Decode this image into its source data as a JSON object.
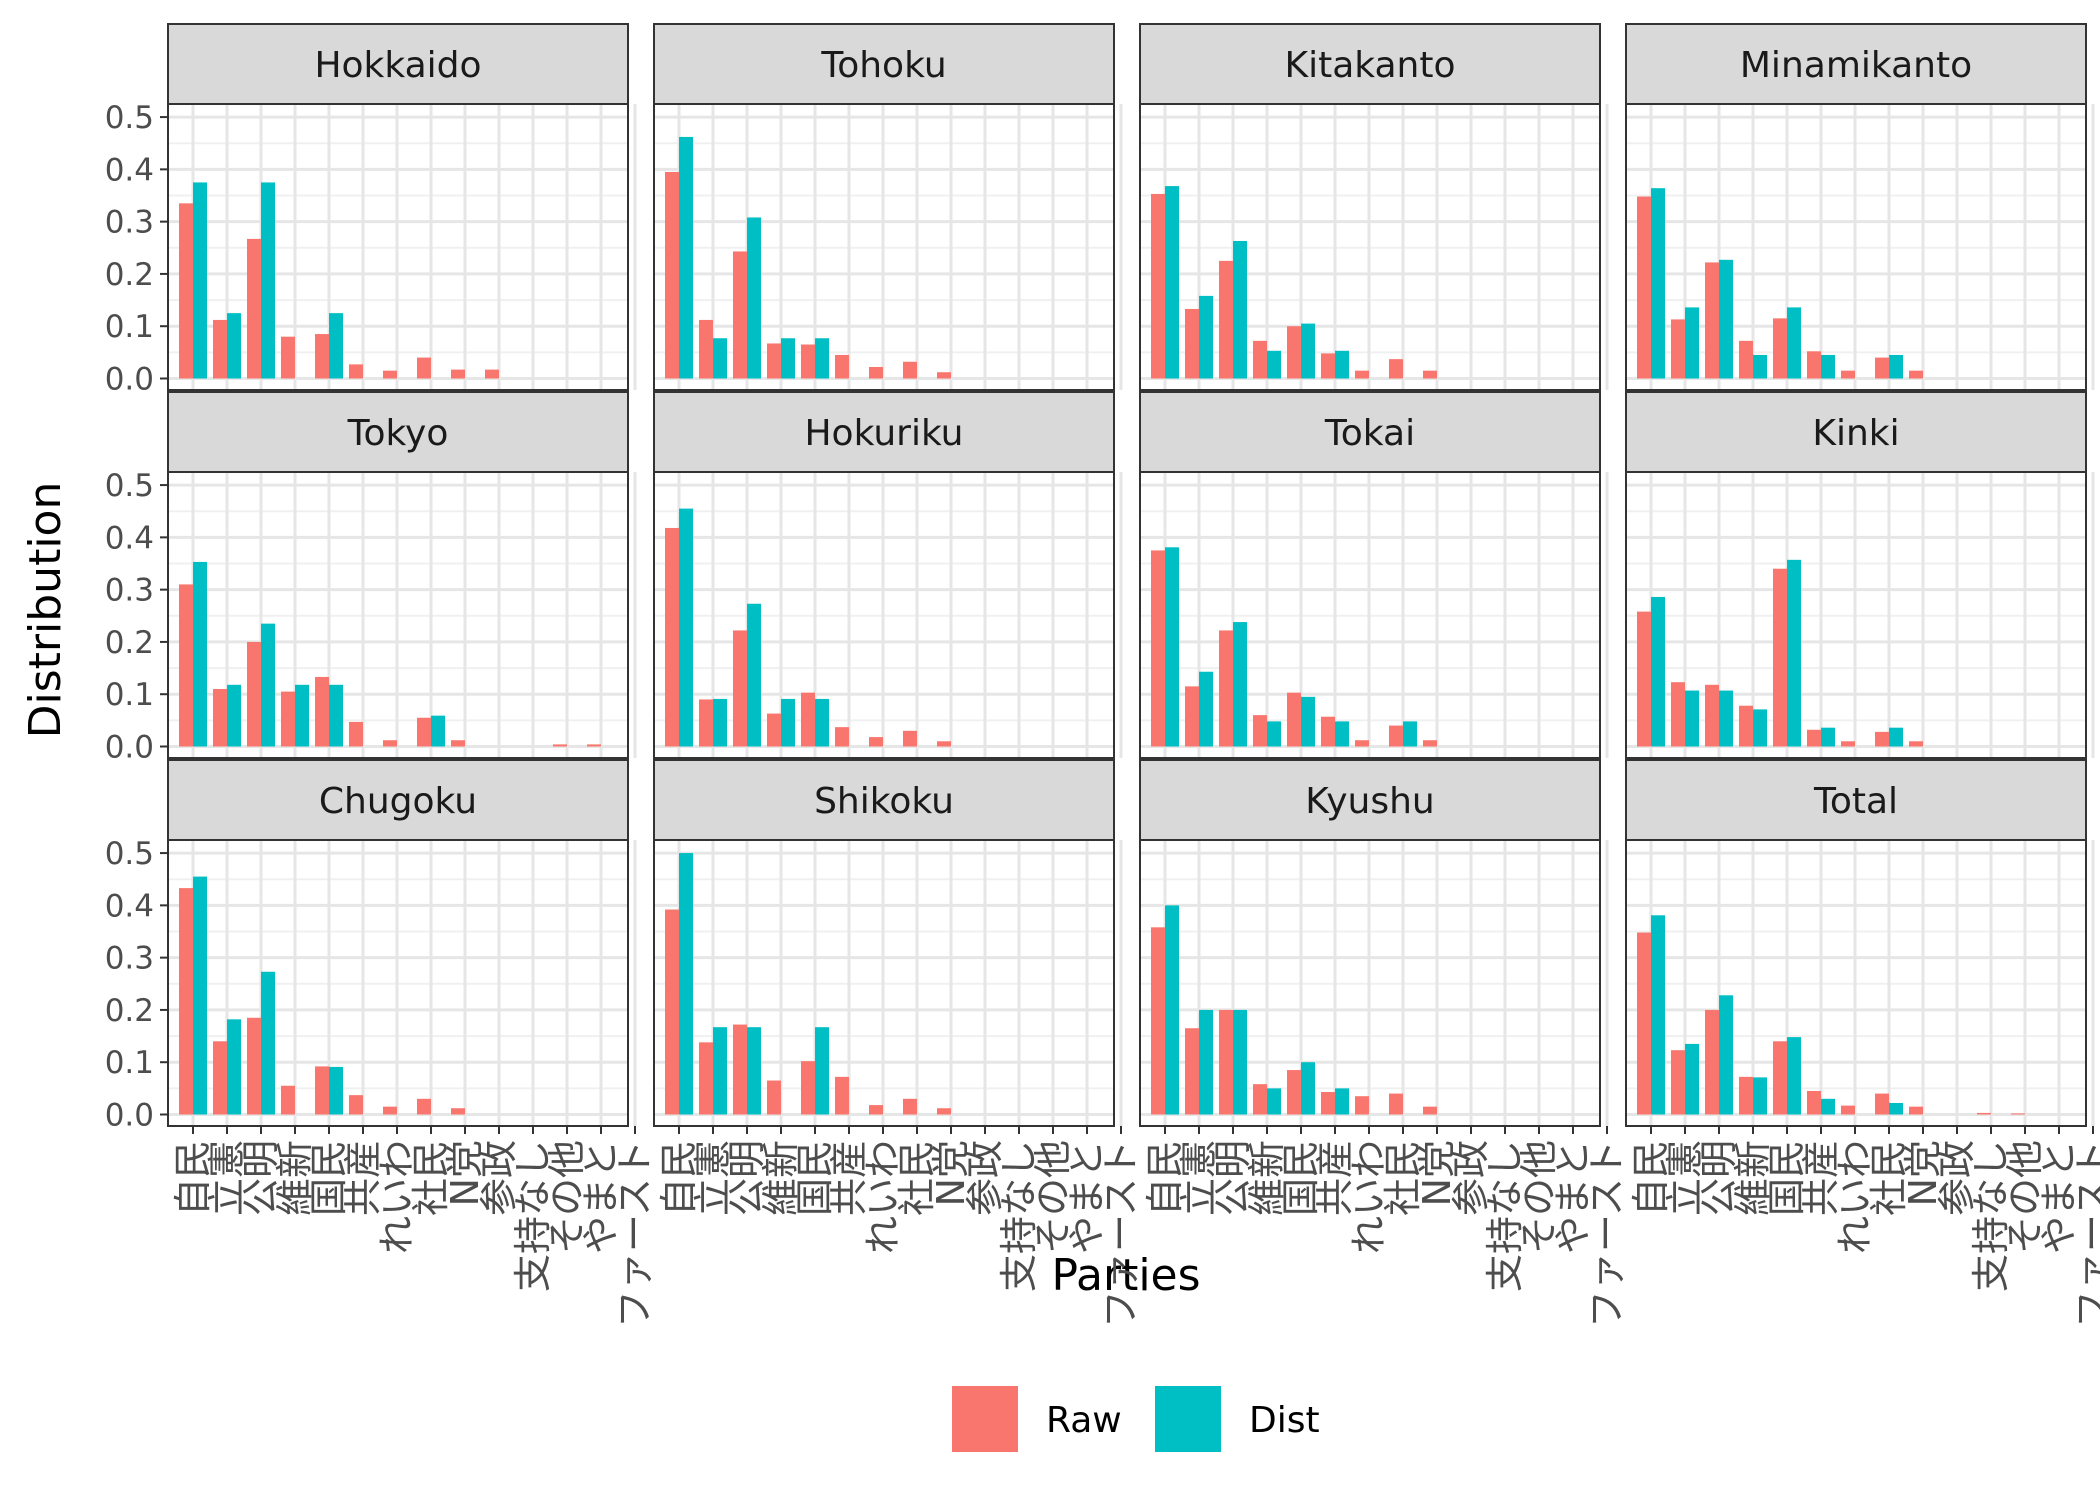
{
  "chart_data": {
    "type": "bar",
    "xlabel": "Parties",
    "ylabel": "Distribution",
    "ylim": [
      0,
      0.5
    ],
    "yticks": [
      "0.0",
      "0.1",
      "0.2",
      "0.3",
      "0.4",
      "0.5"
    ],
    "categories": [
      "自民",
      "立憲",
      "公明",
      "維新",
      "国民",
      "共産",
      "れいわ",
      "社民",
      "N党",
      "参政",
      "支持なし",
      "その他",
      "やまと",
      "ファースト"
    ],
    "legend": {
      "position": "bottom",
      "entries": [
        "Raw",
        "Dist"
      ]
    },
    "colors": {
      "Raw": "#F8766D",
      "Dist": "#00BFC4"
    },
    "grid": true,
    "facets": [
      {
        "name": "Hokkaido",
        "series": [
          {
            "name": "Raw",
            "values": [
              0.335,
              0.112,
              0.267,
              0.08,
              0.085,
              0.027,
              0.015,
              0.04,
              0.017,
              0.017,
              0,
              0,
              0,
              0
            ]
          },
          {
            "name": "Dist",
            "values": [
              0.375,
              0.125,
              0.375,
              0,
              0.125,
              0,
              0,
              0,
              0,
              0,
              0,
              0,
              0,
              0
            ]
          }
        ]
      },
      {
        "name": "Tohoku",
        "series": [
          {
            "name": "Raw",
            "values": [
              0.395,
              0.112,
              0.243,
              0.067,
              0.065,
              0.045,
              0.022,
              0.032,
              0.012,
              0,
              0,
              0,
              0,
              0
            ]
          },
          {
            "name": "Dist",
            "values": [
              0.462,
              0.077,
              0.308,
              0.077,
              0.077,
              0,
              0,
              0,
              0,
              0,
              0,
              0,
              0,
              0
            ]
          }
        ]
      },
      {
        "name": "Kitakanto",
        "series": [
          {
            "name": "Raw",
            "values": [
              0.353,
              0.133,
              0.225,
              0.072,
              0.1,
              0.048,
              0.015,
              0.037,
              0.015,
              0,
              0,
              0,
              0,
              0
            ]
          },
          {
            "name": "Dist",
            "values": [
              0.368,
              0.158,
              0.263,
              0.053,
              0.105,
              0.053,
              0,
              0,
              0,
              0,
              0,
              0,
              0,
              0
            ]
          }
        ]
      },
      {
        "name": "Minamikanto",
        "series": [
          {
            "name": "Raw",
            "values": [
              0.348,
              0.113,
              0.222,
              0.072,
              0.115,
              0.052,
              0.015,
              0.04,
              0.015,
              0,
              0,
              0,
              0,
              0
            ]
          },
          {
            "name": "Dist",
            "values": [
              0.364,
              0.136,
              0.227,
              0.045,
              0.136,
              0.045,
              0,
              0.045,
              0,
              0,
              0,
              0,
              0,
              0
            ]
          }
        ]
      },
      {
        "name": "Tokyo",
        "series": [
          {
            "name": "Raw",
            "values": [
              0.31,
              0.11,
              0.2,
              0.105,
              0.133,
              0.047,
              0.012,
              0.055,
              0.012,
              0,
              0,
              0.004,
              0.004,
              0
            ]
          },
          {
            "name": "Dist",
            "values": [
              0.353,
              0.118,
              0.235,
              0.118,
              0.118,
              0,
              0,
              0.059,
              0,
              0,
              0,
              0,
              0,
              0
            ]
          }
        ]
      },
      {
        "name": "Hokuriku",
        "series": [
          {
            "name": "Raw",
            "values": [
              0.418,
              0.09,
              0.222,
              0.063,
              0.103,
              0.037,
              0.018,
              0.03,
              0.01,
              0,
              0,
              0,
              0,
              0
            ]
          },
          {
            "name": "Dist",
            "values": [
              0.455,
              0.091,
              0.273,
              0.091,
              0.091,
              0,
              0,
              0,
              0,
              0,
              0,
              0,
              0,
              0
            ]
          }
        ]
      },
      {
        "name": "Tokai",
        "series": [
          {
            "name": "Raw",
            "values": [
              0.375,
              0.115,
              0.222,
              0.06,
              0.103,
              0.057,
              0.012,
              0.04,
              0.012,
              0,
              0,
              0,
              0,
              0
            ]
          },
          {
            "name": "Dist",
            "values": [
              0.381,
              0.143,
              0.238,
              0.048,
              0.095,
              0.048,
              0,
              0.048,
              0,
              0,
              0,
              0,
              0,
              0
            ]
          }
        ]
      },
      {
        "name": "Kinki",
        "series": [
          {
            "name": "Raw",
            "values": [
              0.258,
              0.123,
              0.118,
              0.078,
              0.34,
              0.032,
              0.01,
              0.028,
              0.01,
              0,
              0,
              0,
              0,
              0
            ]
          },
          {
            "name": "Dist",
            "values": [
              0.286,
              0.107,
              0.107,
              0.071,
              0.357,
              0.036,
              0,
              0.036,
              0,
              0,
              0,
              0,
              0,
              0
            ]
          }
        ]
      },
      {
        "name": "Chugoku",
        "series": [
          {
            "name": "Raw",
            "values": [
              0.433,
              0.14,
              0.185,
              0.055,
              0.092,
              0.037,
              0.015,
              0.03,
              0.012,
              0,
              0,
              0,
              0,
              0
            ]
          },
          {
            "name": "Dist",
            "values": [
              0.455,
              0.182,
              0.273,
              0,
              0.091,
              0,
              0,
              0,
              0,
              0,
              0,
              0,
              0,
              0
            ]
          }
        ]
      },
      {
        "name": "Shikoku",
        "series": [
          {
            "name": "Raw",
            "values": [
              0.392,
              0.138,
              0.172,
              0.065,
              0.102,
              0.072,
              0.018,
              0.03,
              0.012,
              0,
              0,
              0,
              0,
              0
            ]
          },
          {
            "name": "Dist",
            "values": [
              0.5,
              0.167,
              0.167,
              0,
              0.167,
              0,
              0,
              0,
              0,
              0,
              0,
              0,
              0,
              0
            ]
          }
        ]
      },
      {
        "name": "Kyushu",
        "series": [
          {
            "name": "Raw",
            "values": [
              0.358,
              0.165,
              0.2,
              0.058,
              0.085,
              0.043,
              0.035,
              0.04,
              0.015,
              0,
              0,
              0,
              0,
              0
            ]
          },
          {
            "name": "Dist",
            "values": [
              0.4,
              0.2,
              0.2,
              0.05,
              0.1,
              0.05,
              0,
              0,
              0,
              0,
              0,
              0,
              0,
              0
            ]
          }
        ]
      },
      {
        "name": "Total",
        "series": [
          {
            "name": "Raw",
            "values": [
              0.348,
              0.123,
              0.2,
              0.072,
              0.14,
              0.045,
              0.017,
              0.04,
              0.015,
              0,
              0.003,
              0.002,
              0,
              0
            ]
          },
          {
            "name": "Dist",
            "values": [
              0.381,
              0.135,
              0.228,
              0.071,
              0.148,
              0.03,
              0,
              0.022,
              0,
              0,
              0,
              0,
              0,
              0
            ]
          }
        ]
      }
    ]
  }
}
